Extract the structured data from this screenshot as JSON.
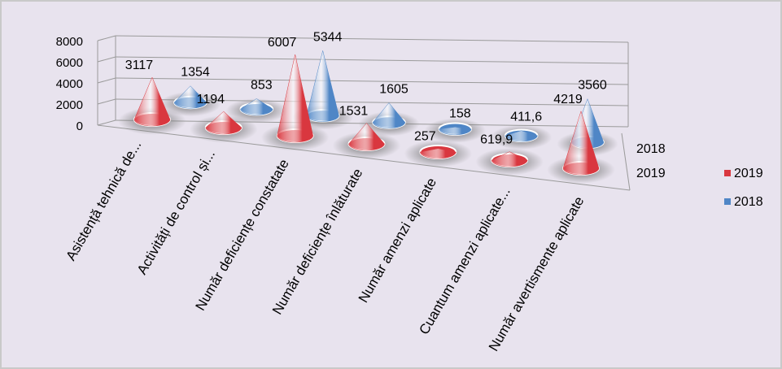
{
  "chart_data": {
    "type": "bar",
    "title": "",
    "xlabel": "",
    "ylabel": "",
    "ylim": [
      0,
      8000
    ],
    "y_ticks": [
      "0",
      "2000",
      "4000",
      "6000",
      "8000"
    ],
    "depth_labels": [
      "2018",
      "2019"
    ],
    "categories": [
      "Asistență tehnică de...",
      "Activități de control și...",
      "Număr deficiențe constatate",
      "Număr deficiențe înlăturate",
      "Număr amenzi aplicate",
      "Cuantum amenzi aplicate...",
      "Număr avertismente aplicate"
    ],
    "series": [
      {
        "name": "2019",
        "color": "#d9373f",
        "values": [
          3117,
          1194,
          6007,
          1531,
          257,
          619.9,
          4219
        ],
        "labels": [
          "3117",
          "1194",
          "6007",
          "1531",
          "257",
          "619,9",
          "4219"
        ]
      },
      {
        "name": "2018",
        "color": "#4f86c6",
        "values": [
          1354,
          853,
          5344,
          1605,
          158,
          411.6,
          3560
        ],
        "labels": [
          "1354",
          "853",
          "5344",
          "1605",
          "158",
          "411,6",
          "3560"
        ]
      }
    ],
    "legend_position": "right",
    "grid": true
  }
}
